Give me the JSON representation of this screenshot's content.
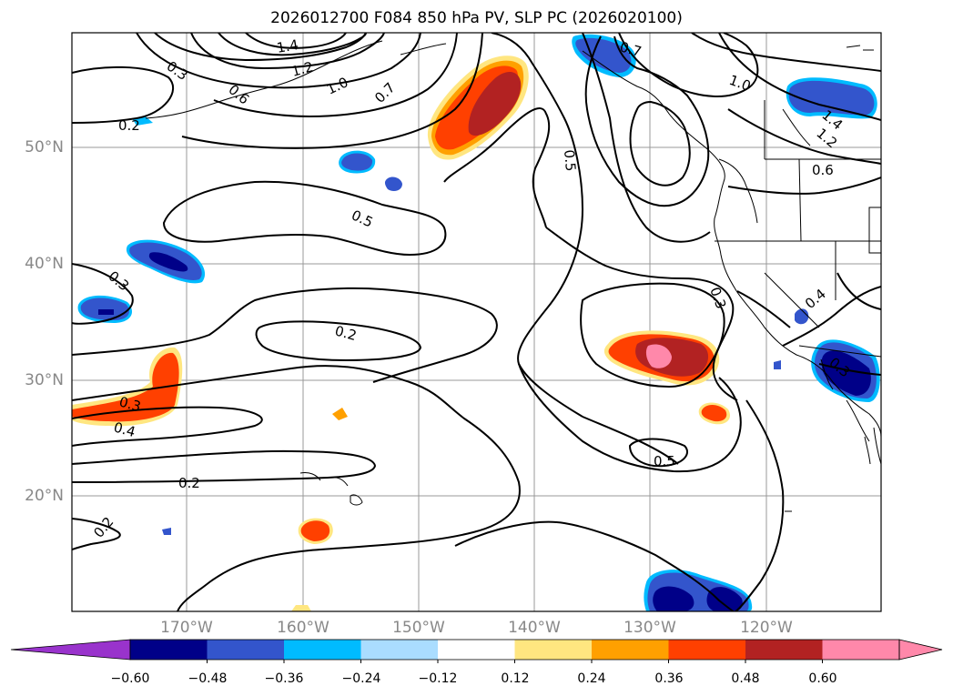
{
  "title": "2026012700 F084 850 hPa PV, SLP PC (2026020100)",
  "lat_labels": [
    "50°N",
    "40°N",
    "30°N",
    "20°N"
  ],
  "lon_labels": [
    "170°W",
    "160°W",
    "150°W",
    "140°W",
    "130°W",
    "120°W"
  ],
  "contour_labels": [
    "1.4",
    "1.2",
    "1.0",
    "0.7",
    "0.6",
    "0.3",
    "0.2",
    "0.5",
    "0.3",
    "0.2",
    "0.3",
    "0.4",
    "0.2",
    "0.2",
    "0.5",
    "0.3",
    "0.7",
    "1.0",
    "1.4",
    "1.2",
    "0.6",
    "0.4",
    "0.3",
    "0.5"
  ],
  "colorbar": {
    "ticks": [
      "−0.60",
      "−0.48",
      "−0.36",
      "−0.24",
      "−0.12",
      "0.12",
      "0.24",
      "0.36",
      "0.48",
      "0.60"
    ],
    "colors": [
      "#9933cc",
      "#000088",
      "#3355cc",
      "#00bbff",
      "#aaddff",
      "#ffffff",
      "#ffe680",
      "#ffa000",
      "#ff4000",
      "#b22222",
      "#ff88aa",
      "#ff88aa"
    ]
  }
}
